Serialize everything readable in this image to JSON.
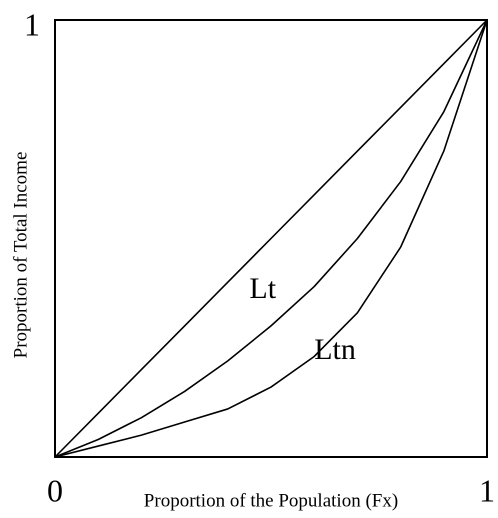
{
  "chart_data": {
    "type": "line",
    "x_label": "Proportion of the Population (Fx)",
    "y_label": "Proportion of Total Income",
    "x": [
      0,
      0.1,
      0.2,
      0.3,
      0.4,
      0.5,
      0.6,
      0.7,
      0.8,
      0.9,
      1
    ],
    "series": [
      {
        "color": "#000000",
        "values": [
          0,
          0.1,
          0.2,
          0.3,
          0.4,
          0.5,
          0.6,
          0.7,
          0.8,
          0.9,
          1
        ]
      },
      {
        "name": "Lt",
        "color": "#000000",
        "values": [
          0,
          0.04,
          0.09,
          0.15,
          0.22,
          0.3,
          0.39,
          0.5,
          0.63,
          0.79,
          1
        ]
      },
      {
        "name": "Ltn",
        "color": "#000000",
        "values": [
          0,
          0.025,
          0.05,
          0.08,
          0.11,
          0.16,
          0.23,
          0.33,
          0.48,
          0.7,
          1
        ]
      }
    ],
    "xlim": [
      0,
      1
    ],
    "ylim": [
      0,
      1
    ],
    "xticks": [
      0,
      1
    ],
    "yticks": [
      1
    ],
    "grid": false
  }
}
